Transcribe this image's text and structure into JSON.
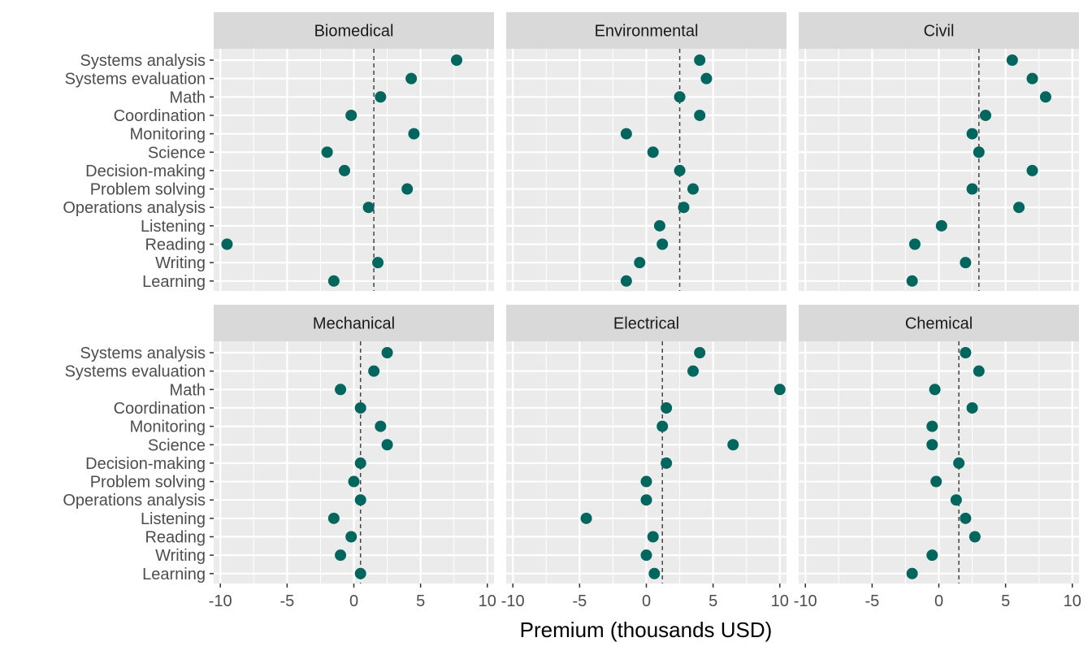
{
  "chart_data": {
    "type": "scatter",
    "layout": "faceted dot plot, 2 rows x 3 columns",
    "xlabel": "Premium (thousands USD)",
    "ylabel": "",
    "xlim": [
      -10.5,
      10.5
    ],
    "xticks": [
      -10,
      -5,
      0,
      5,
      10
    ],
    "xtick_labels": [
      "-10",
      "-5",
      "0",
      "5",
      "10"
    ],
    "grid": true,
    "reference_line": "dashed vertical line per panel",
    "point_color": "#00665E",
    "panel_background": "#EBEBEB",
    "strip_background": "#D9D9D9",
    "gridline_color": "#FFFFFF",
    "categories": [
      "Systems analysis",
      "Systems evaluation",
      "Math",
      "Coordination",
      "Monitoring",
      "Science",
      "Decision-making",
      "Problem solving",
      "Operations analysis",
      "Listening",
      "Reading",
      "Writing",
      "Learning"
    ],
    "panels": [
      {
        "name": "Biomedical",
        "ref": 1.5,
        "values": [
          7.7,
          4.3,
          2.0,
          -0.2,
          4.5,
          -2.0,
          -0.7,
          4.0,
          1.1,
          null,
          -9.5,
          1.8,
          -1.5
        ]
      },
      {
        "name": "Environmental",
        "ref": 2.5,
        "values": [
          4.0,
          4.5,
          2.5,
          4.0,
          -1.5,
          0.5,
          2.5,
          3.5,
          2.8,
          1.0,
          1.2,
          -0.5,
          -1.5
        ]
      },
      {
        "name": "Civil",
        "ref": 3.0,
        "values": [
          5.5,
          7.0,
          8.0,
          3.5,
          2.5,
          3.0,
          7.0,
          2.5,
          6.0,
          0.2,
          -1.8,
          2.0,
          -2.0
        ]
      },
      {
        "name": "Mechanical",
        "ref": 0.5,
        "values": [
          2.5,
          1.5,
          -1.0,
          0.5,
          2.0,
          2.5,
          0.5,
          0.0,
          0.5,
          -1.5,
          -0.2,
          -1.0,
          0.5
        ]
      },
      {
        "name": "Electrical",
        "ref": 1.2,
        "values": [
          4.0,
          3.5,
          10.0,
          1.5,
          1.2,
          6.5,
          1.5,
          0.0,
          0.0,
          -4.5,
          0.5,
          0.0,
          0.6
        ]
      },
      {
        "name": "Chemical",
        "ref": 1.5,
        "values": [
          2.0,
          3.0,
          -0.3,
          2.5,
          -0.5,
          -0.5,
          1.5,
          -0.2,
          1.3,
          2.0,
          2.7,
          -0.5,
          -2.0
        ]
      }
    ]
  }
}
